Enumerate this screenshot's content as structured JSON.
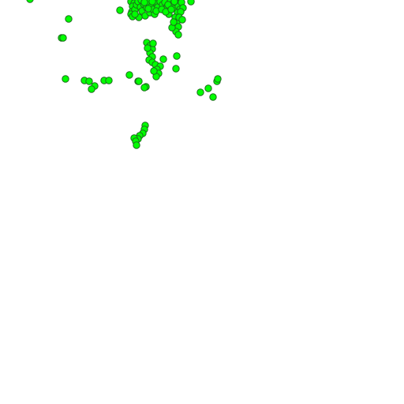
{
  "map": {
    "background": "#ffffff",
    "marker_fill": "#00ff00",
    "marker_stroke": "#1d6b1d",
    "marker_icon": "green-circle-marker",
    "marker_count": 106
  }
}
